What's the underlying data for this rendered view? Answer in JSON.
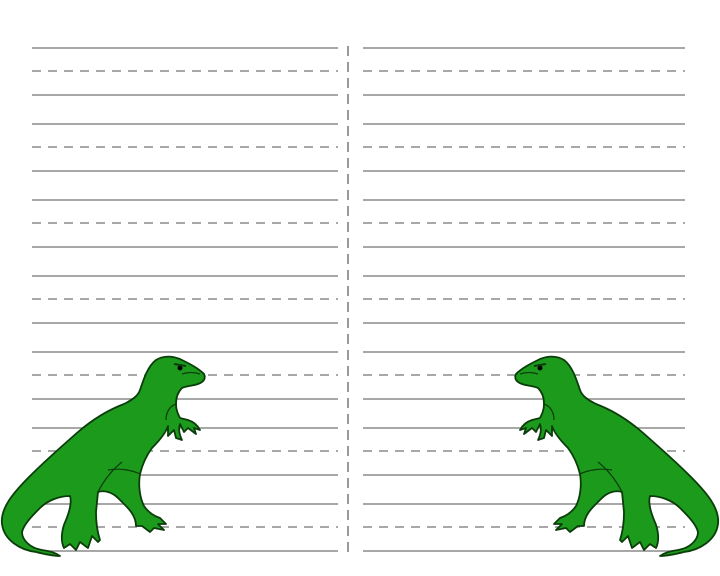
{
  "page": {
    "background": "#ffffff",
    "columns": 2
  },
  "lines": {
    "solid_color": "#8c8c8c",
    "dashed_color": "#8c8c8c",
    "divider_color": "#9a9a9a",
    "rows_per_column": 7,
    "row_pattern": [
      "solid",
      "dashed",
      "solid"
    ]
  },
  "dinosaurs": [
    {
      "name": "green-dinosaur-left",
      "color": "#1c9a1c",
      "outline": "#0b3d0b",
      "facing": "right"
    },
    {
      "name": "green-dinosaur-right",
      "color": "#1c9a1c",
      "outline": "#0b3d0b",
      "facing": "left"
    }
  ]
}
